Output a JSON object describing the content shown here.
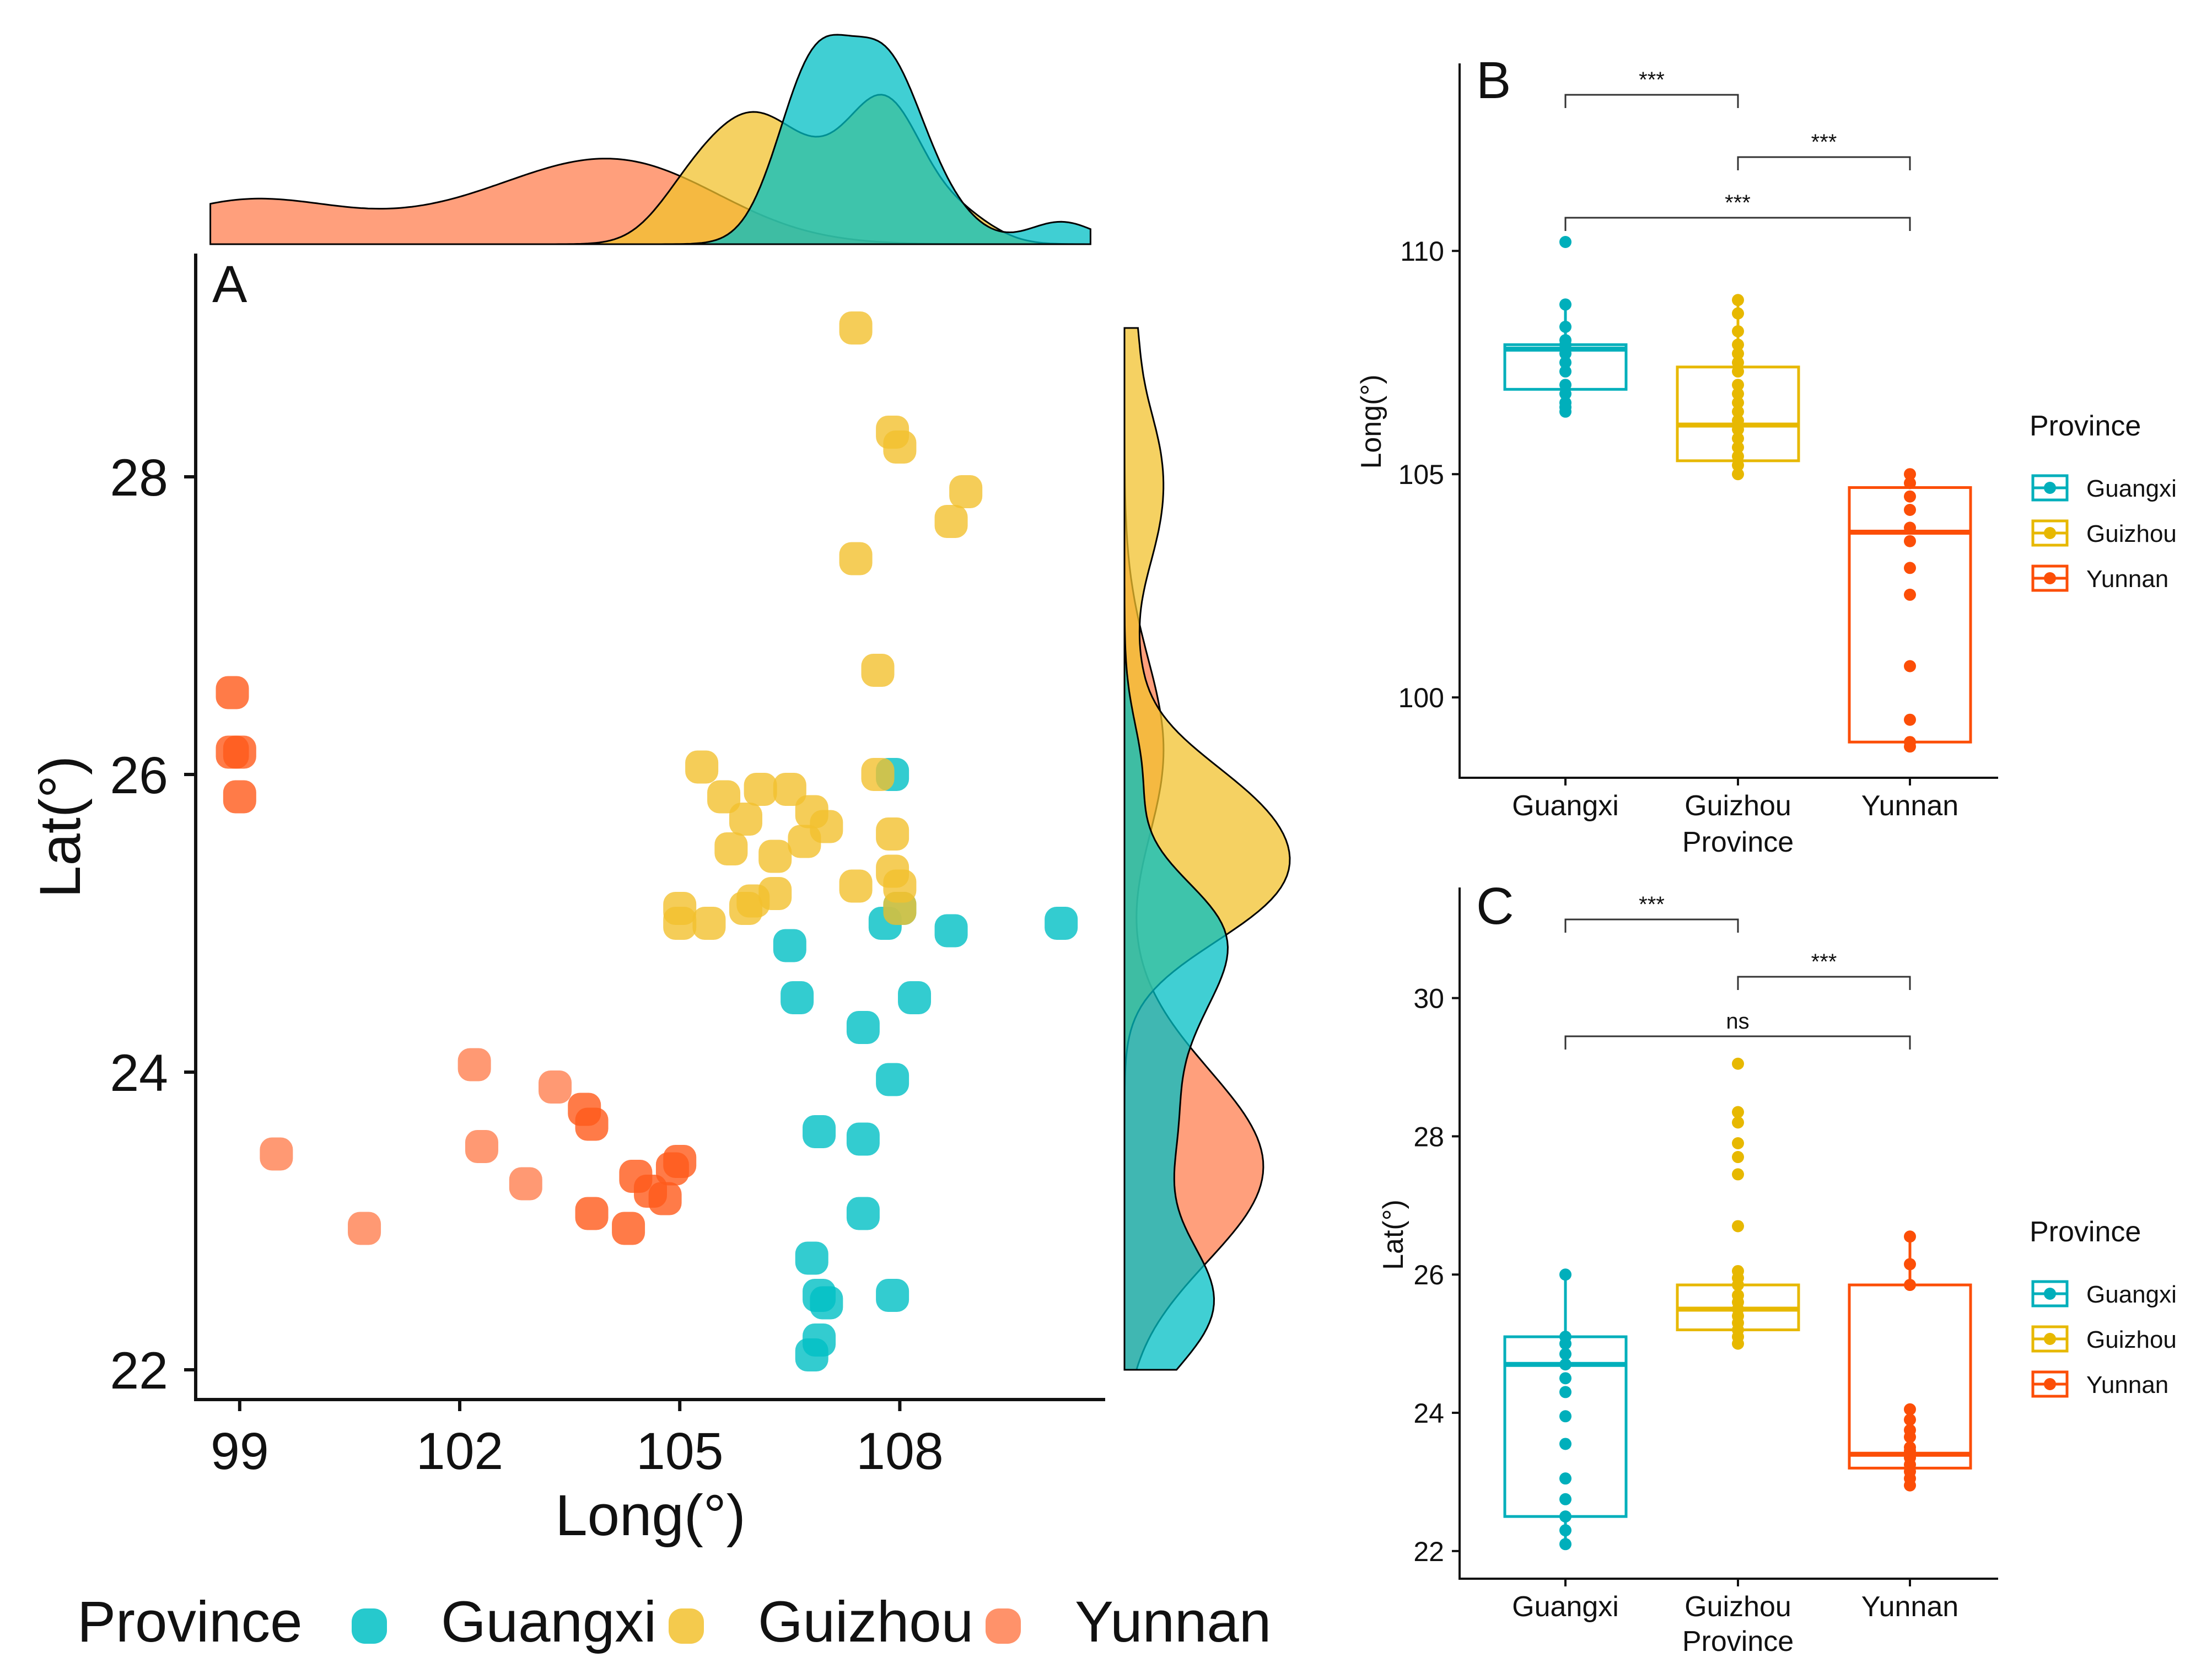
{
  "colors": {
    "Guangxi": "#00BFC4",
    "Guizhou": "#F2C12E",
    "Yunnan": "#FF7F50",
    "Guangxi_box": "#00AFBB",
    "Guizhou_box": "#E7B800",
    "Yunnan_box": "#FC4E07"
  },
  "chart_data": [
    {
      "panel": "A",
      "type": "scatter",
      "xlabel": "Long(°)",
      "ylabel": "Lat(°)",
      "xlim": [
        98.4,
        110.8
      ],
      "ylim": [
        21.8,
        29.5
      ],
      "xticks": [
        99,
        102,
        105,
        108
      ],
      "yticks": [
        22,
        24,
        26,
        28
      ],
      "legend": {
        "title": "Province",
        "entries": [
          "Guangxi",
          "Guizhou",
          "Yunnan"
        ],
        "position": "bottom"
      },
      "series": [
        {
          "name": "Guangxi",
          "points": [
            [
              107.9,
              26.0
            ],
            [
              106.5,
              24.85
            ],
            [
              106.6,
              24.5
            ],
            [
              107.8,
              25.0
            ],
            [
              108.0,
              25.1
            ],
            [
              108.7,
              24.95
            ],
            [
              110.2,
              25.0
            ],
            [
              107.5,
              24.3
            ],
            [
              108.2,
              24.5
            ],
            [
              107.9,
              23.95
            ],
            [
              106.9,
              23.6
            ],
            [
              107.5,
              23.55
            ],
            [
              107.5,
              23.05
            ],
            [
              106.8,
              22.75
            ],
            [
              106.9,
              22.5
            ],
            [
              107.0,
              22.45
            ],
            [
              106.9,
              22.2
            ],
            [
              106.8,
              22.1
            ],
            [
              107.9,
              22.5
            ]
          ]
        },
        {
          "name": "Guizhou",
          "points": [
            [
              107.4,
              29.0
            ],
            [
              107.9,
              28.3
            ],
            [
              108.0,
              28.2
            ],
            [
              108.9,
              27.9
            ],
            [
              108.7,
              27.7
            ],
            [
              107.4,
              27.45
            ],
            [
              107.7,
              26.7
            ],
            [
              107.7,
              26.0
            ],
            [
              105.3,
              26.05
            ],
            [
              105.6,
              25.85
            ],
            [
              106.1,
              25.9
            ],
            [
              106.5,
              25.9
            ],
            [
              106.8,
              25.75
            ],
            [
              107.0,
              25.65
            ],
            [
              105.9,
              25.7
            ],
            [
              105.7,
              25.5
            ],
            [
              106.3,
              25.45
            ],
            [
              106.7,
              25.55
            ],
            [
              107.9,
              25.6
            ],
            [
              107.9,
              25.35
            ],
            [
              108.0,
              25.25
            ],
            [
              107.4,
              25.25
            ],
            [
              106.3,
              25.2
            ],
            [
              106.0,
              25.15
            ],
            [
              105.9,
              25.1
            ],
            [
              105.0,
              25.1
            ],
            [
              105.0,
              25.0
            ],
            [
              105.4,
              25.0
            ],
            [
              108.0,
              25.1
            ]
          ]
        },
        {
          "name": "Yunnan",
          "points": [
            [
              98.9,
              26.55
            ],
            [
              99.0,
              26.15
            ],
            [
              98.9,
              26.15
            ],
            [
              99.0,
              25.85
            ],
            [
              99.5,
              23.45
            ],
            [
              100.7,
              22.95
            ],
            [
              102.2,
              24.05
            ],
            [
              102.3,
              23.5
            ],
            [
              102.9,
              23.25
            ],
            [
              103.3,
              23.9
            ],
            [
              103.7,
              23.75
            ],
            [
              103.8,
              23.65
            ],
            [
              103.8,
              23.05
            ],
            [
              104.3,
              22.95
            ],
            [
              104.4,
              23.3
            ],
            [
              104.6,
              23.2
            ],
            [
              104.8,
              23.15
            ],
            [
              104.9,
              23.35
            ],
            [
              105.0,
              23.4
            ]
          ]
        }
      ]
    },
    {
      "panel": "B",
      "type": "box",
      "xlabel": "Province",
      "ylabel": "Long(°)",
      "categories": [
        "Guangxi",
        "Guizhou",
        "Yunnan"
      ],
      "ylim": [
        98.2,
        114.2
      ],
      "yticks": [
        100,
        105,
        110
      ],
      "boxes": [
        {
          "name": "Guangxi",
          "q1": 106.9,
          "median": 107.8,
          "q3": 107.9,
          "whisker_low": 106.4,
          "whisker_high": 108.8,
          "points": [
            110.2,
            108.8,
            108.3,
            108.0,
            107.9,
            107.8,
            107.7,
            107.5,
            107.3,
            107.0,
            106.8,
            106.6,
            106.5,
            106.4
          ]
        },
        {
          "name": "Guizhou",
          "q1": 105.3,
          "median": 106.1,
          "q3": 107.4,
          "whisker_low": 105.0,
          "whisker_high": 108.9,
          "points": [
            108.9,
            108.6,
            108.2,
            107.9,
            107.7,
            107.5,
            107.3,
            107.0,
            106.8,
            106.6,
            106.4,
            106.2,
            106.0,
            105.8,
            105.6,
            105.4,
            105.2,
            105.0
          ]
        },
        {
          "name": "Yunnan",
          "q1": 99.0,
          "median": 103.7,
          "q3": 104.7,
          "whisker_low": 98.8,
          "whisker_high": 105.0,
          "points": [
            105.0,
            104.8,
            104.5,
            104.2,
            103.8,
            103.5,
            102.9,
            102.3,
            100.7,
            99.5,
            99.0,
            98.9
          ]
        }
      ],
      "comparisons": [
        {
          "from": "Guangxi",
          "to": "Guizhou",
          "label": "***"
        },
        {
          "from": "Guizhou",
          "to": "Yunnan",
          "label": "***"
        },
        {
          "from": "Guangxi",
          "to": "Yunnan",
          "label": "***"
        }
      ],
      "legend": {
        "title": "Province",
        "entries": [
          "Guangxi",
          "Guizhou",
          "Yunnan"
        ],
        "position": "right"
      }
    },
    {
      "panel": "C",
      "type": "box",
      "xlabel": "Province",
      "ylabel": "Lat(°)",
      "categories": [
        "Guangxi",
        "Guizhou",
        "Yunnan"
      ],
      "ylim": [
        21.6,
        31.6
      ],
      "yticks": [
        22,
        24,
        26,
        28,
        30
      ],
      "boxes": [
        {
          "name": "Guangxi",
          "q1": 22.5,
          "median": 24.7,
          "q3": 25.1,
          "whisker_low": 22.1,
          "whisker_high": 26.0,
          "points": [
            26.0,
            25.1,
            25.0,
            24.85,
            24.7,
            24.5,
            24.3,
            23.95,
            23.55,
            23.05,
            22.75,
            22.5,
            22.3,
            22.1
          ]
        },
        {
          "name": "Guizhou",
          "q1": 25.2,
          "median": 25.5,
          "q3": 25.85,
          "whisker_low": 25.0,
          "whisker_high": 26.1,
          "points": [
            29.05,
            28.35,
            28.2,
            27.9,
            27.7,
            27.45,
            26.7,
            26.05,
            25.95,
            25.85,
            25.7,
            25.6,
            25.5,
            25.4,
            25.3,
            25.2,
            25.1,
            25.0
          ]
        },
        {
          "name": "Yunnan",
          "q1": 23.2,
          "median": 23.4,
          "q3": 25.85,
          "whisker_low": 22.95,
          "whisker_high": 26.55,
          "points": [
            26.55,
            26.15,
            25.85,
            24.05,
            23.9,
            23.75,
            23.65,
            23.5,
            23.45,
            23.35,
            23.25,
            23.15,
            23.05,
            22.95
          ]
        }
      ],
      "comparisons": [
        {
          "from": "Guangxi",
          "to": "Guizhou",
          "label": "***"
        },
        {
          "from": "Guizhou",
          "to": "Yunnan",
          "label": "***"
        },
        {
          "from": "Guangxi",
          "to": "Yunnan",
          "label": "ns"
        }
      ],
      "legend": {
        "title": "Province",
        "entries": [
          "Guangxi",
          "Guizhou",
          "Yunnan"
        ],
        "position": "right"
      }
    }
  ]
}
